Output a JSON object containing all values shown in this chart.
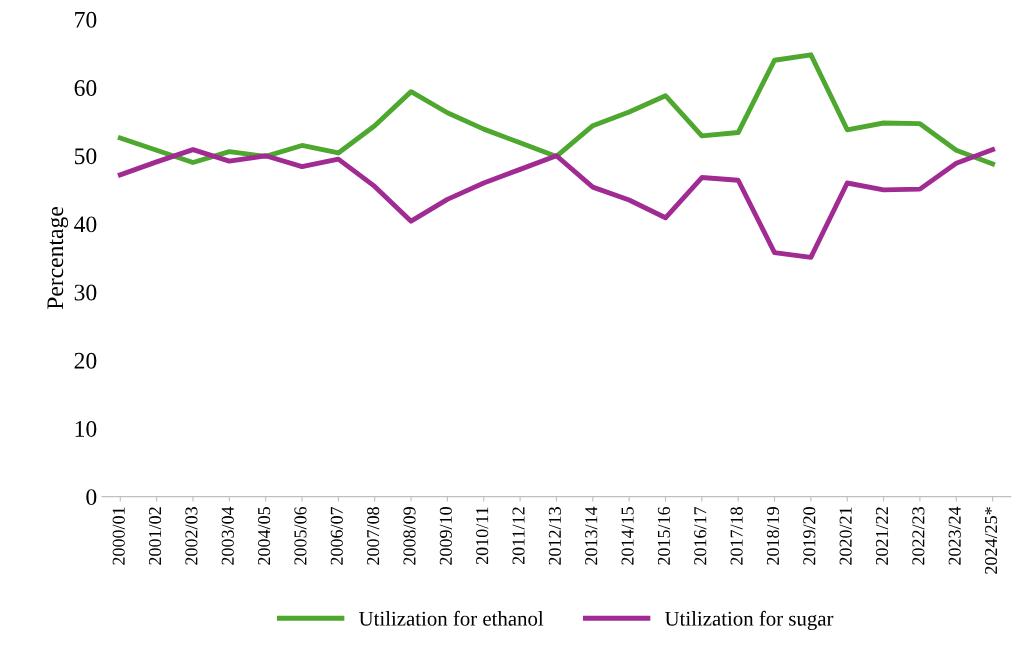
{
  "chart_data": {
    "type": "line",
    "ylabel": "Percentage",
    "categories": [
      "2000/01",
      "2001/02",
      "2002/03",
      "2003/04",
      "2004/05",
      "2005/06",
      "2006/07",
      "2007/08",
      "2008/09",
      "2009/10",
      "2010/11",
      "2011/12",
      "2012/13",
      "2013/14",
      "2014/15",
      "2015/16",
      "2016/17",
      "2017/18",
      "2018/19",
      "2019/20",
      "2020/21",
      "2021/22",
      "2022/23",
      "2023/24",
      "2024/25*"
    ],
    "series": [
      {
        "name": "Utilization for ethanol",
        "color": "#4ea72e",
        "values": [
          52.6,
          50.8,
          49.0,
          50.6,
          49.9,
          51.5,
          50.4,
          54.4,
          59.4,
          56.3,
          53.9,
          51.9,
          49.9,
          54.4,
          56.4,
          58.8,
          52.9,
          53.4,
          64.0,
          64.8,
          53.8,
          54.8,
          54.7,
          50.8,
          48.8
        ]
      },
      {
        "name": "Utilization for sugar",
        "color": "#a02b93",
        "values": [
          47.2,
          49.1,
          50.9,
          49.2,
          50.0,
          48.4,
          49.5,
          45.5,
          40.4,
          43.6,
          46.0,
          48.0,
          50.0,
          45.4,
          43.5,
          40.9,
          46.8,
          46.4,
          35.8,
          35.1,
          46.0,
          45.0,
          45.1,
          48.9,
          50.9
        ]
      }
    ],
    "ylim": [
      0,
      70
    ],
    "yticks": [
      0,
      10,
      20,
      30,
      40,
      50,
      60,
      70
    ],
    "grid": false,
    "legend": "bottom",
    "marker": "none",
    "line_style": "solid"
  }
}
